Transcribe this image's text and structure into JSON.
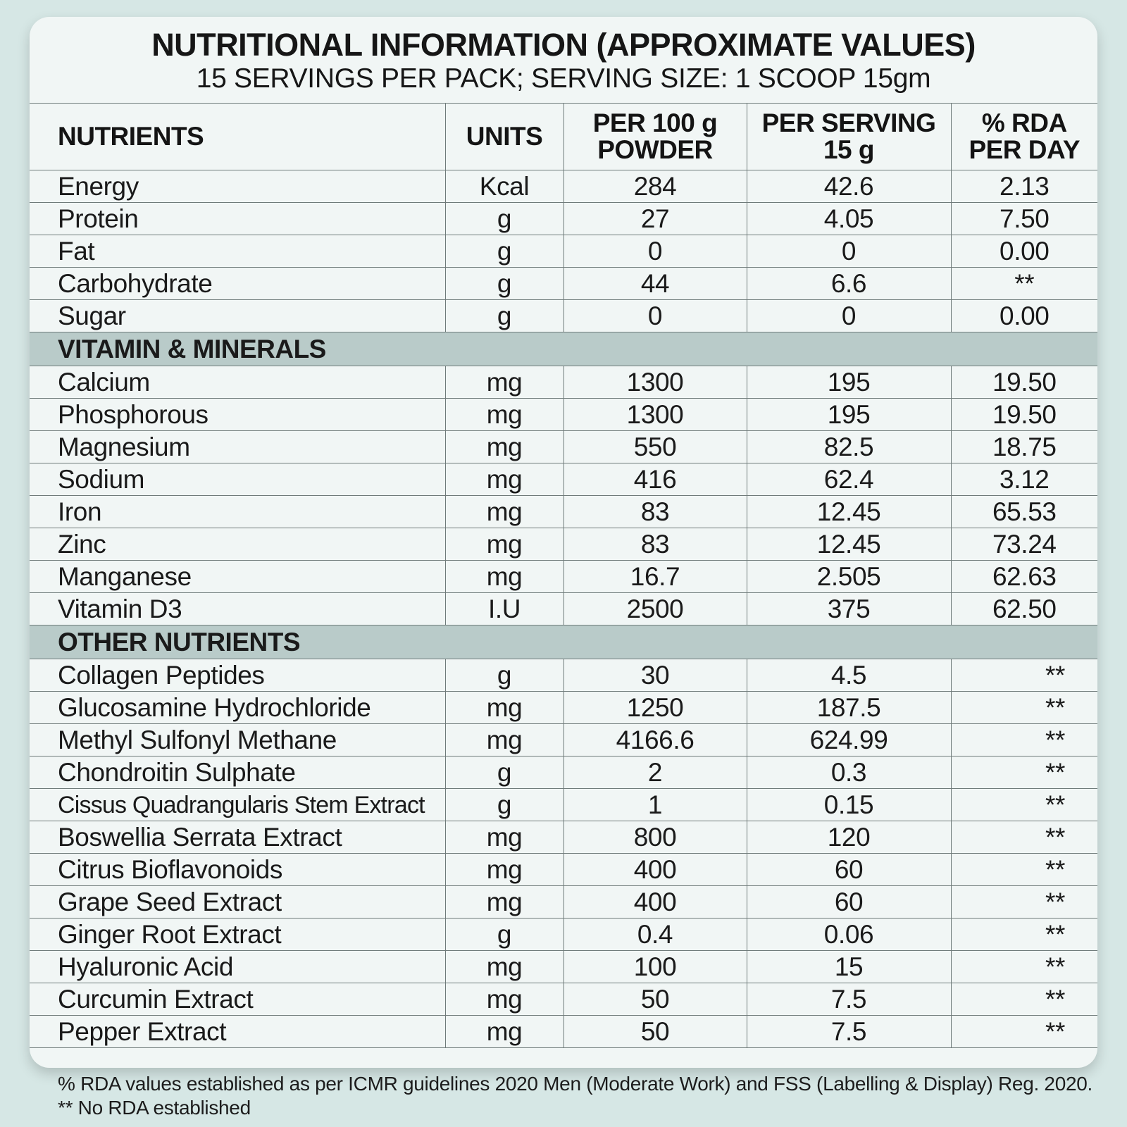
{
  "header": {
    "title": "NUTRITIONAL INFORMATION (APPROXIMATE VALUES)",
    "subtitle": "15 SERVINGS PER PACK; SERVING SIZE: 1 SCOOP 15gm"
  },
  "columns": {
    "nutrients": "NUTRIENTS",
    "units": "UNITS",
    "per100_line1": "PER 100 g",
    "per100_line2": "POWDER",
    "serving_line1": "PER SERVING",
    "serving_line2": "15 g",
    "rda_line1": "% RDA",
    "rda_line2": "PER DAY"
  },
  "basic": [
    {
      "name": "Energy",
      "unit": "Kcal",
      "per100": "284",
      "serving": "42.6",
      "rda": "2.13"
    },
    {
      "name": "Protein",
      "unit": "g",
      "per100": "27",
      "serving": "4.05",
      "rda": "7.50"
    },
    {
      "name": "Fat",
      "unit": "g",
      "per100": "0",
      "serving": "0",
      "rda": "0.00"
    },
    {
      "name": "Carbohydrate",
      "unit": "g",
      "per100": "44",
      "serving": "6.6",
      "rda": "**"
    },
    {
      "name": "Sugar",
      "unit": "g",
      "per100": "0",
      "serving": "0",
      "rda": "0.00"
    }
  ],
  "vitamins": {
    "heading": "VITAMIN & MINERALS",
    "rows": [
      {
        "name": "Calcium",
        "unit": "mg",
        "per100": "1300",
        "serving": "195",
        "rda": "19.50"
      },
      {
        "name": "Phosphorous",
        "unit": "mg",
        "per100": "1300",
        "serving": "195",
        "rda": "19.50"
      },
      {
        "name": "Magnesium",
        "unit": "mg",
        "per100": "550",
        "serving": "82.5",
        "rda": "18.75"
      },
      {
        "name": "Sodium",
        "unit": "mg",
        "per100": "416",
        "serving": "62.4",
        "rda": "3.12"
      },
      {
        "name": "Iron",
        "unit": "mg",
        "per100": "83",
        "serving": "12.45",
        "rda": "65.53"
      },
      {
        "name": "Zinc",
        "unit": "mg",
        "per100": "83",
        "serving": "12.45",
        "rda": "73.24"
      },
      {
        "name": "Manganese",
        "unit": "mg",
        "per100": "16.7",
        "serving": "2.505",
        "rda": "62.63"
      },
      {
        "name": "Vitamin D3",
        "unit": "I.U",
        "per100": "2500",
        "serving": "375",
        "rda": "62.50"
      }
    ]
  },
  "others": {
    "heading": "OTHER NUTRIENTS",
    "rows": [
      {
        "name": "Collagen Peptides",
        "unit": "g",
        "per100": "30",
        "serving": "4.5",
        "rda": "**"
      },
      {
        "name": "Glucosamine Hydrochloride",
        "unit": "mg",
        "per100": "1250",
        "serving": "187.5",
        "rda": "**"
      },
      {
        "name": "Methyl Sulfonyl Methane",
        "unit": "mg",
        "per100": "4166.6",
        "serving": "624.99",
        "rda": "**"
      },
      {
        "name": "Chondroitin Sulphate",
        "unit": "g",
        "per100": "2",
        "serving": "0.3",
        "rda": "**"
      },
      {
        "name": "Cissus Quadrangularis Stem Extract",
        "unit": "g",
        "per100": "1",
        "serving": "0.15",
        "rda": "**"
      },
      {
        "name": "Boswellia Serrata Extract",
        "unit": "mg",
        "per100": "800",
        "serving": "120",
        "rda": "**"
      },
      {
        "name": "Citrus Bioflavonoids",
        "unit": "mg",
        "per100": "400",
        "serving": "60",
        "rda": "**"
      },
      {
        "name": "Grape Seed Extract",
        "unit": "mg",
        "per100": "400",
        "serving": "60",
        "rda": "**"
      },
      {
        "name": "Ginger Root Extract",
        "unit": "g",
        "per100": "0.4",
        "serving": "0.06",
        "rda": "**"
      },
      {
        "name": "Hyaluronic Acid",
        "unit": "mg",
        "per100": "100",
        "serving": "15",
        "rda": "**"
      },
      {
        "name": "Curcumin Extract",
        "unit": "mg",
        "per100": "50",
        "serving": "7.5",
        "rda": "**"
      },
      {
        "name": "Pepper Extract",
        "unit": "mg",
        "per100": "50",
        "serving": "7.5",
        "rda": "**"
      }
    ]
  },
  "footnotes": {
    "rda_note": "% RDA values established as per ICMR guidelines 2020 Men (Moderate Work) and FSS (Labelling & Display) Reg. 2020.",
    "no_rda_note": "** No RDA established"
  },
  "colors": {
    "background": "#d6e7e5",
    "card": "#f1f6f5",
    "section_band": "#b9cbc9",
    "grid_line": "#6f7b7a"
  }
}
